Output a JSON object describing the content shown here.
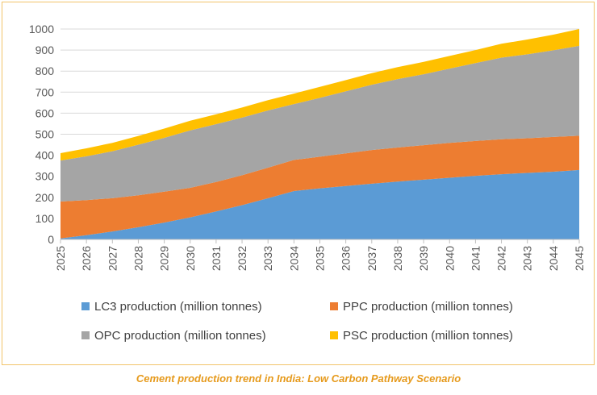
{
  "caption": "Cement production trend in India: Low Carbon Pathway Scenario",
  "chart_data": {
    "type": "area",
    "stacked": true,
    "title": "",
    "xlabel": "",
    "ylabel": "",
    "ylim": [
      0,
      1000
    ],
    "y_ticks": [
      0,
      100,
      200,
      300,
      400,
      500,
      600,
      700,
      800,
      900,
      1000
    ],
    "grid": true,
    "legend_position": "bottom",
    "categories": [
      "2025",
      "2026",
      "2027",
      "2028",
      "2029",
      "2030",
      "2031",
      "2032",
      "2033",
      "2034",
      "2035",
      "2036",
      "2037",
      "2038",
      "2039",
      "2040",
      "2041",
      "2042",
      "2043",
      "2044",
      "2045"
    ],
    "series": [
      {
        "name": "LC3 production (million tonnes)",
        "color": "#5b9bd5",
        "values": [
          5,
          20,
          38,
          58,
          80,
          105,
          133,
          163,
          196,
          230,
          243,
          254,
          265,
          275,
          284,
          293,
          302,
          310,
          316,
          322,
          330
        ]
      },
      {
        "name": "PPC production (million tonnes)",
        "color": "#ed7d31",
        "values": [
          175,
          167,
          158,
          152,
          147,
          140,
          140,
          142,
          145,
          148,
          150,
          155,
          160,
          162,
          164,
          166,
          166,
          166,
          165,
          165,
          163
        ]
      },
      {
        "name": "OPC production (million tonnes)",
        "color": "#a5a5a5",
        "values": [
          195,
          208,
          223,
          240,
          256,
          273,
          275,
          274,
          272,
          265,
          280,
          295,
          310,
          325,
          337,
          353,
          370,
          388,
          399,
          412,
          427
        ]
      },
      {
        "name": "PSC production (million tonnes)",
        "color": "#ffc000",
        "values": [
          35,
          38,
          40,
          42,
          44,
          46,
          47,
          48,
          49,
          50,
          52,
          53,
          55,
          57,
          59,
          60,
          62,
          66,
          70,
          74,
          80
        ]
      }
    ]
  }
}
